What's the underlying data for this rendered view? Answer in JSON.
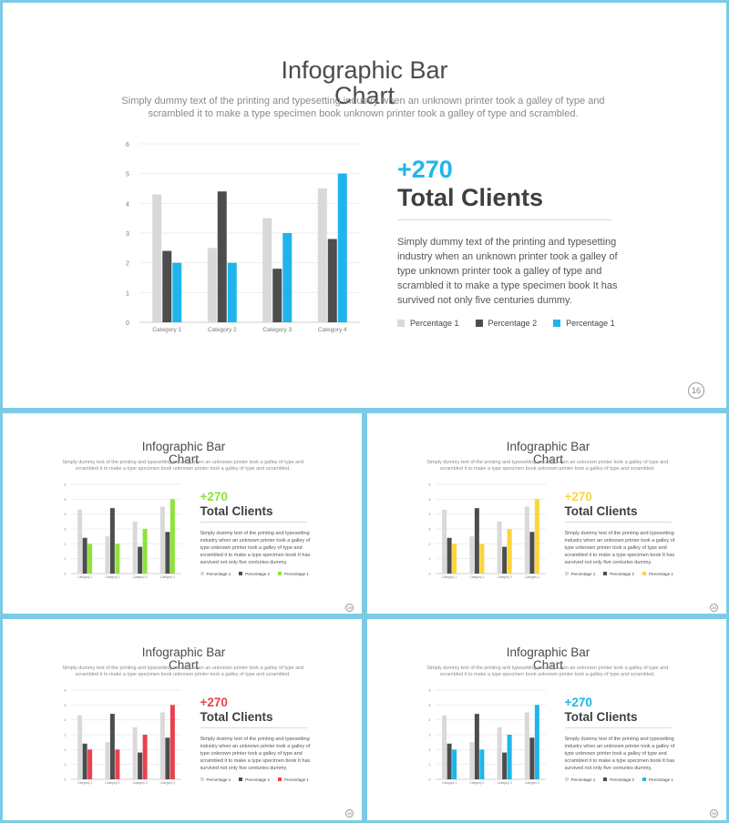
{
  "colors": {
    "frame": "#7ccbe6",
    "series1": "#d9d9d9",
    "series2": "#4d4d4d",
    "accents": [
      "#1fb5ec",
      "#8ee33a",
      "#fdd43c",
      "#e8424e",
      "#1fb5ec"
    ]
  },
  "slide": {
    "title": "Infographic Bar Chart",
    "description": "Simply dummy text of the printing and typesetting industry when an unknown printer took a galley of type and scrambled it to make a type specimen book unknown printer took a galley of type and scrambled.",
    "big_number": "+270",
    "subtitle": "Total Clients",
    "body": "Simply dummy text of the printing and typesetting industry when an unknown printer took a galley of type unknown printer took a galley of type and scrambled it to make a type specimen book It has survived not only five centuries dummy.",
    "page_number": "16"
  },
  "chart_data": {
    "type": "bar",
    "categories": [
      "Category 1",
      "Category 2",
      "Category 3",
      "Category 4"
    ],
    "series": [
      {
        "name": "Percentage 1",
        "values": [
          4.3,
          2.5,
          3.5,
          4.5
        ]
      },
      {
        "name": "Percentage 2",
        "values": [
          2.4,
          4.4,
          1.8,
          2.8
        ]
      },
      {
        "name": "Percentage 1",
        "values": [
          2.0,
          2.0,
          3.0,
          5.0
        ]
      }
    ],
    "ylim": [
      0,
      6
    ],
    "yticks": [
      "0",
      "1",
      "2",
      "3",
      "4",
      "5",
      "6"
    ],
    "grid": true,
    "legend": "bottom"
  }
}
